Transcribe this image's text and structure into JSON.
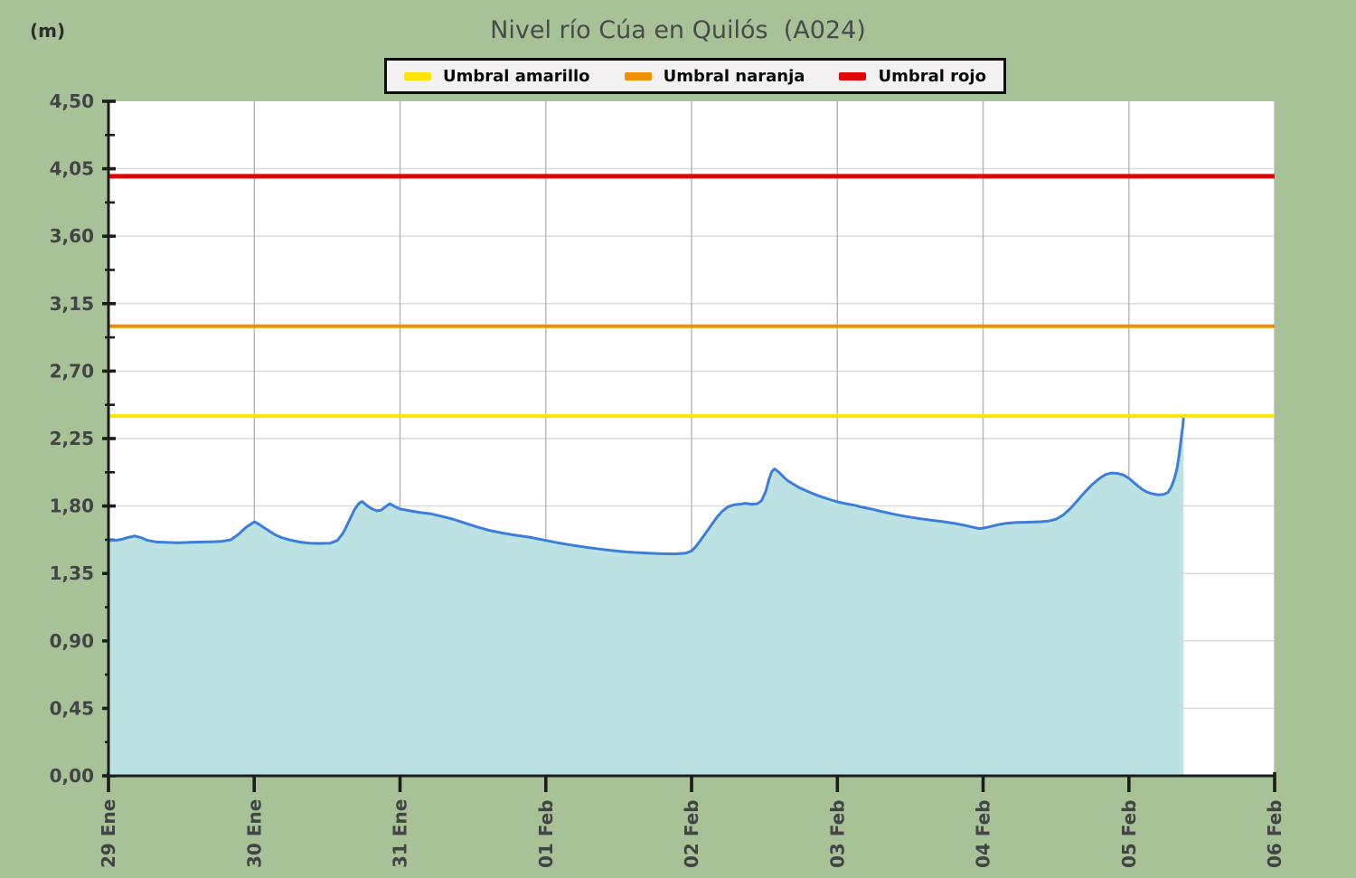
{
  "title": "Nivel río Cúa en Quilós  (A024)",
  "y_unit_label": "(m)",
  "legend": [
    {
      "label": "Umbral amarillo",
      "color": "#ffe400",
      "icon": "yellow-dash-swatch"
    },
    {
      "label": "Umbral naranja",
      "color": "#f09000",
      "icon": "orange-dash-swatch"
    },
    {
      "label": "Umbral rojo",
      "color": "#e00606",
      "icon": "red-dash-swatch"
    }
  ],
  "colors": {
    "page_background": "#a8c298",
    "plot_background": "#ffffff",
    "axis": "#1c1c1c",
    "grid_horizontal": "#d8d8d8",
    "grid_vertical": "#b6b6b6",
    "tick_label": "#424446",
    "title_text": "#474b4e",
    "legend_background": "#f3f1f2",
    "legend_border": "#0f0f0f",
    "series_line": "#3d7edb",
    "series_fill": "#bce2e3"
  },
  "chart_data": {
    "type": "area",
    "title": "Nivel río Cúa en Quilós  (A024)",
    "xlabel": "",
    "ylabel": "(m)",
    "ylim": [
      0,
      4.5
    ],
    "ytick_step": 0.45,
    "ytick_minor_step": 0.225,
    "ytick_labels": [
      "0,00",
      "0,45",
      "0,90",
      "1,35",
      "1,80",
      "2,25",
      "2,70",
      "3,15",
      "3,60",
      "4,05",
      "4,50"
    ],
    "xlim_days": [
      0,
      8
    ],
    "x_categories": [
      "29 Ene",
      "30 Ene",
      "31 Ene",
      "01 Feb",
      "02 Feb",
      "03 Feb",
      "04 Feb",
      "05 Feb",
      "06 Feb"
    ],
    "grid": true,
    "legend_position": "top-center",
    "thresholds": [
      {
        "name": "Umbral amarillo",
        "value": 2.4,
        "color": "#ffe400",
        "width": 4
      },
      {
        "name": "Umbral naranja",
        "value": 3.0,
        "color": "#f09000",
        "width": 4
      },
      {
        "name": "Umbral rojo",
        "value": 4.0,
        "color": "#e00606",
        "width": 5
      }
    ],
    "series": [
      {
        "name": "nivel",
        "line_color": "#3d7edb",
        "fill_color": "#bce2e3",
        "points_days_value": [
          [
            0.0,
            1.57
          ],
          [
            0.06,
            1.572
          ],
          [
            0.1,
            1.58
          ],
          [
            0.14,
            1.592
          ],
          [
            0.18,
            1.6
          ],
          [
            0.22,
            1.59
          ],
          [
            0.27,
            1.57
          ],
          [
            0.33,
            1.56
          ],
          [
            0.4,
            1.557
          ],
          [
            0.48,
            1.555
          ],
          [
            0.56,
            1.558
          ],
          [
            0.64,
            1.56
          ],
          [
            0.72,
            1.562
          ],
          [
            0.78,
            1.565
          ],
          [
            0.84,
            1.575
          ],
          [
            0.89,
            1.61
          ],
          [
            0.94,
            1.655
          ],
          [
            1.0,
            1.695
          ],
          [
            1.03,
            1.68
          ],
          [
            1.06,
            1.66
          ],
          [
            1.1,
            1.635
          ],
          [
            1.14,
            1.61
          ],
          [
            1.19,
            1.588
          ],
          [
            1.25,
            1.572
          ],
          [
            1.31,
            1.56
          ],
          [
            1.38,
            1.552
          ],
          [
            1.45,
            1.55
          ],
          [
            1.52,
            1.552
          ],
          [
            1.57,
            1.57
          ],
          [
            1.61,
            1.62
          ],
          [
            1.65,
            1.7
          ],
          [
            1.69,
            1.78
          ],
          [
            1.72,
            1.82
          ],
          [
            1.74,
            1.83
          ],
          [
            1.77,
            1.805
          ],
          [
            1.8,
            1.785
          ],
          [
            1.84,
            1.768
          ],
          [
            1.87,
            1.772
          ],
          [
            1.9,
            1.795
          ],
          [
            1.93,
            1.815
          ],
          [
            1.96,
            1.798
          ],
          [
            2.0,
            1.78
          ],
          [
            2.06,
            1.77
          ],
          [
            2.13,
            1.758
          ],
          [
            2.21,
            1.748
          ],
          [
            2.29,
            1.73
          ],
          [
            2.37,
            1.71
          ],
          [
            2.45,
            1.685
          ],
          [
            2.53,
            1.66
          ],
          [
            2.61,
            1.638
          ],
          [
            2.7,
            1.62
          ],
          [
            2.79,
            1.605
          ],
          [
            2.89,
            1.592
          ],
          [
            3.0,
            1.57
          ],
          [
            3.08,
            1.555
          ],
          [
            3.17,
            1.54
          ],
          [
            3.26,
            1.527
          ],
          [
            3.35,
            1.515
          ],
          [
            3.45,
            1.503
          ],
          [
            3.56,
            1.493
          ],
          [
            3.67,
            1.487
          ],
          [
            3.78,
            1.482
          ],
          [
            3.88,
            1.48
          ],
          [
            3.96,
            1.485
          ],
          [
            4.0,
            1.5
          ],
          [
            4.03,
            1.53
          ],
          [
            4.06,
            1.57
          ],
          [
            4.09,
            1.61
          ],
          [
            4.13,
            1.665
          ],
          [
            4.17,
            1.72
          ],
          [
            4.21,
            1.765
          ],
          [
            4.25,
            1.795
          ],
          [
            4.29,
            1.808
          ],
          [
            4.33,
            1.812
          ],
          [
            4.37,
            1.818
          ],
          [
            4.41,
            1.812
          ],
          [
            4.45,
            1.815
          ],
          [
            4.48,
            1.835
          ],
          [
            4.51,
            1.9
          ],
          [
            4.53,
            1.975
          ],
          [
            4.55,
            2.03
          ],
          [
            4.57,
            2.048
          ],
          [
            4.6,
            2.025
          ],
          [
            4.63,
            1.995
          ],
          [
            4.66,
            1.968
          ],
          [
            4.7,
            1.945
          ],
          [
            4.74,
            1.922
          ],
          [
            4.78,
            1.905
          ],
          [
            4.82,
            1.888
          ],
          [
            4.87,
            1.868
          ],
          [
            4.92,
            1.852
          ],
          [
            4.96,
            1.84
          ],
          [
            5.0,
            1.828
          ],
          [
            5.06,
            1.815
          ],
          [
            5.12,
            1.805
          ],
          [
            5.17,
            1.792
          ],
          [
            5.24,
            1.778
          ],
          [
            5.31,
            1.762
          ],
          [
            5.39,
            1.745
          ],
          [
            5.47,
            1.73
          ],
          [
            5.55,
            1.718
          ],
          [
            5.64,
            1.706
          ],
          [
            5.73,
            1.695
          ],
          [
            5.81,
            1.683
          ],
          [
            5.88,
            1.67
          ],
          [
            5.93,
            1.658
          ],
          [
            5.97,
            1.65
          ],
          [
            6.0,
            1.652
          ],
          [
            6.05,
            1.663
          ],
          [
            6.1,
            1.675
          ],
          [
            6.16,
            1.685
          ],
          [
            6.23,
            1.69
          ],
          [
            6.31,
            1.692
          ],
          [
            6.39,
            1.695
          ],
          [
            6.45,
            1.7
          ],
          [
            6.5,
            1.712
          ],
          [
            6.55,
            1.74
          ],
          [
            6.6,
            1.785
          ],
          [
            6.65,
            1.84
          ],
          [
            6.7,
            1.895
          ],
          [
            6.75,
            1.945
          ],
          [
            6.8,
            1.985
          ],
          [
            6.84,
            2.01
          ],
          [
            6.88,
            2.02
          ],
          [
            6.92,
            2.018
          ],
          [
            6.96,
            2.008
          ],
          [
            7.0,
            1.985
          ],
          [
            7.03,
            1.96
          ],
          [
            7.06,
            1.935
          ],
          [
            7.09,
            1.912
          ],
          [
            7.12,
            1.895
          ],
          [
            7.16,
            1.882
          ],
          [
            7.2,
            1.875
          ],
          [
            7.24,
            1.878
          ],
          [
            7.27,
            1.892
          ],
          [
            7.29,
            1.925
          ],
          [
            7.31,
            1.975
          ],
          [
            7.33,
            2.05
          ],
          [
            7.34,
            2.11
          ],
          [
            7.35,
            2.18
          ],
          [
            7.36,
            2.26
          ],
          [
            7.37,
            2.33
          ],
          [
            7.375,
            2.39
          ]
        ]
      }
    ]
  }
}
